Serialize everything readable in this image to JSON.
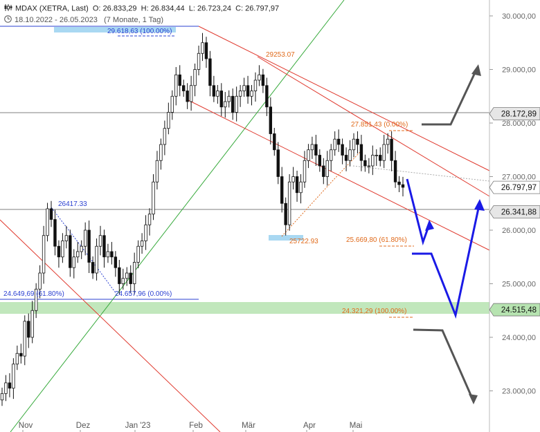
{
  "header": {
    "symbol_line": "MDAX (XETRA, Last)",
    "open_label": "O:",
    "open": "26.833,29",
    "high_label": "H:",
    "high": "26.834,44",
    "low_label": "L:",
    "low": "26.723,24",
    "close_label": "C:",
    "close": "26.797,97",
    "date_range": "18.10.2022 - 26.05.2023",
    "period": "(7 Monate, 1 Tag)",
    "chart_icon": "candlestick-icon",
    "clock_icon": "clock-icon"
  },
  "colors": {
    "candle": "#111111",
    "trend_red": "#e03a2f",
    "trend_green": "#35a93a",
    "fib_orange": "#e06a1b",
    "fib_blue": "#2a3fd1",
    "arrow_blue": "#1a1ae6",
    "arrow_gray": "#555555",
    "support_band": "#b6e3b0",
    "price_box": "#eeeeee"
  },
  "chart_data": {
    "type": "candlestick",
    "x_labels": [
      "Nov",
      "Dez",
      "Jan '23",
      "Feb",
      "Mär",
      "Apr",
      "Mai"
    ],
    "y_ticks": [
      "30.000,00",
      "29.000,00",
      "28.000,00",
      "27.000,00",
      "26.000,00",
      "25.000,00",
      "24.000,00",
      "23.000,00"
    ],
    "ylim": [
      22150,
      30300
    ],
    "y_values": [
      30000,
      29000,
      28000,
      27000,
      26000,
      25000,
      24000,
      23000
    ],
    "candles_close": [
      22950,
      23150,
      23050,
      23500,
      23700,
      23650,
      24300,
      24000,
      24500,
      24900,
      25200,
      25900,
      26400,
      26200,
      25700,
      25500,
      25800,
      25900,
      25300,
      25500,
      25600,
      25700,
      26000,
      25400,
      25200,
      25700,
      25900,
      25500,
      25600,
      25500,
      25300,
      25000,
      25100,
      25200,
      25000,
      25400,
      25700,
      25800,
      26100,
      26300,
      26900,
      27300,
      27600,
      27900,
      28200,
      28500,
      28900,
      28700,
      28600,
      28400,
      28700,
      29000,
      29300,
      29500,
      29200,
      28700,
      28500,
      28600,
      28300,
      28400,
      28500,
      28200,
      28500,
      28600,
      28700,
      28500,
      28600,
      28800,
      28900,
      28700,
      28300,
      27800,
      27500,
      27000,
      26500,
      26100,
      26900,
      27000,
      26700,
      26900,
      27300,
      27500,
      27600,
      27400,
      27200,
      27000,
      27300,
      27500,
      27700,
      27600,
      27400,
      27300,
      27500,
      27700,
      27600,
      27300,
      27200,
      27200,
      27400,
      27400,
      27300,
      27600,
      27700,
      27300,
      26900,
      26850,
      26800
    ],
    "price_tags": [
      {
        "label": "28.172,89",
        "value": 28172.89,
        "style": "gray"
      },
      {
        "label": "26.797,97",
        "value": 26797.97,
        "style": "current"
      },
      {
        "label": "26.341,88",
        "value": 26341.88,
        "style": "gray"
      },
      {
        "label": "24.515,48",
        "value": 24515.48,
        "style": "green"
      }
    ],
    "annotations": [
      {
        "text": "29.618,63 (100.00%)",
        "color": "blue"
      },
      {
        "text": "29253.07",
        "color": "orange"
      },
      {
        "text": "27.851,43 (0.00%)",
        "color": "orange"
      },
      {
        "text": "26417.33",
        "color": "blue"
      },
      {
        "text": "25722.93",
        "color": "orange"
      },
      {
        "text": "25.669,80 (61.80%)",
        "color": "orange"
      },
      {
        "text": "24.649,69 (61.80%)",
        "color": "blue"
      },
      {
        "text": "24.657,96 (0.00%)",
        "color": "blue"
      },
      {
        "text": "24.321,29 (100.00%)",
        "color": "orange"
      }
    ]
  }
}
